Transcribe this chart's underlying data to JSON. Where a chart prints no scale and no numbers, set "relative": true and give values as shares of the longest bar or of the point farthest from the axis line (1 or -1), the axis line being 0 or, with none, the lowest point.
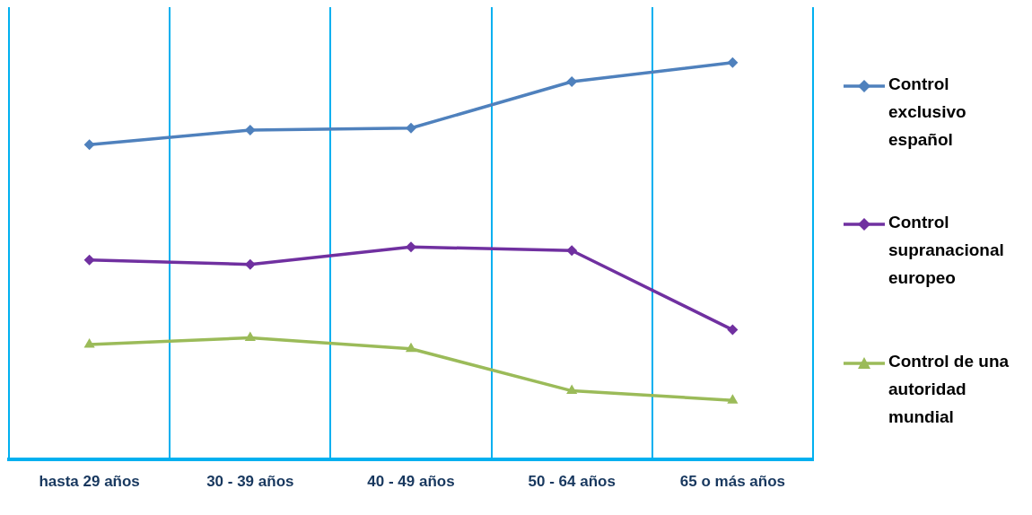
{
  "chart_data": {
    "type": "line",
    "relative": true,
    "categories": [
      "hasta 29 años",
      "30 - 39 años",
      "40 - 49 años",
      "50 - 64 años",
      "65 o más años"
    ],
    "series": [
      {
        "name": "Control exclusivo español",
        "color": "#4f81bd",
        "marker": "diamond",
        "values": [
          0.793,
          0.83,
          0.835,
          0.952,
          1
        ]
      },
      {
        "name": "Control supranacional europeo",
        "color": "#7030a0",
        "marker": "diamond",
        "values": [
          0.502,
          0.491,
          0.535,
          0.526,
          0.326
        ]
      },
      {
        "name": "Control de una autoridad mundial",
        "color": "#9bbb59",
        "marker": "triangle",
        "values": [
          0.289,
          0.306,
          0.278,
          0.172,
          0.148
        ]
      }
    ],
    "grid": "x",
    "legend": "right",
    "line_style": "solid"
  }
}
